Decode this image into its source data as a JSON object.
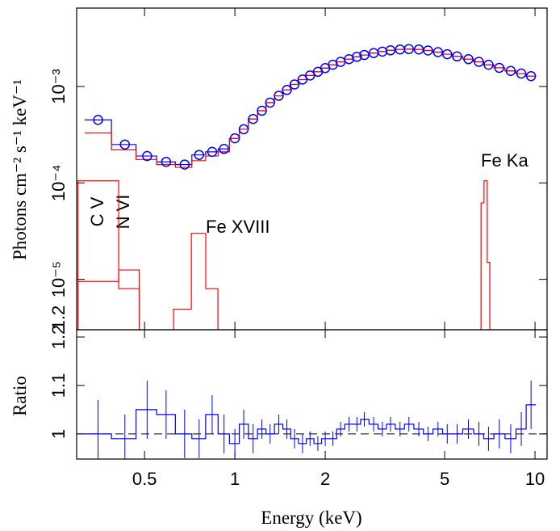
{
  "chart_data": [
    {
      "type": "line",
      "ylabel": "Photons cm⁻² s⁻¹ keV⁻¹",
      "xlim": [
        0.297,
        10.97
      ],
      "xscale": "log",
      "ylim": [
        3e-06,
        0.0065
      ],
      "yscale": "log",
      "yticks": [
        {
          "value": 0.001,
          "label": "10⁻³"
        },
        {
          "value": 0.0001,
          "label": "10⁻⁴"
        },
        {
          "value": 1e-05,
          "label": "10⁻⁵"
        }
      ],
      "stray_label": "1.2",
      "x": [
        0.35,
        0.43,
        0.51,
        0.59,
        0.68,
        0.76,
        0.84,
        0.92,
        1.0,
        1.07,
        1.15,
        1.23,
        1.31,
        1.4,
        1.49,
        1.58,
        1.68,
        1.78,
        1.89,
        2.0,
        2.12,
        2.25,
        2.4,
        2.55,
        2.7,
        2.9,
        3.1,
        3.3,
        3.55,
        3.8,
        4.1,
        4.4,
        4.75,
        5.1,
        5.5,
        6.0,
        6.5,
        7.0,
        7.6,
        8.3,
        9.0,
        9.7
      ],
      "series": [
        {
          "color": "#0000ff",
          "values": [
            0.00045,
            0.00025,
            0.00019,
            0.000165,
            0.000155,
            0.000195,
            0.00021,
            0.000225,
            0.00029,
            0.00036,
            0.00046,
            0.00056,
            0.00068,
            0.0008,
            0.00092,
            0.00105,
            0.00118,
            0.0013,
            0.00142,
            0.00155,
            0.00168,
            0.0018,
            0.00192,
            0.00203,
            0.00212,
            0.00222,
            0.0023,
            0.00237,
            0.00242,
            0.00244,
            0.00242,
            0.00236,
            0.00227,
            0.00216,
            0.00205,
            0.00192,
            0.0018,
            0.00168,
            0.00156,
            0.00145,
            0.00136,
            0.00128
          ]
        },
        {
          "color": "#ff0000",
          "values": [
            0.00033,
            0.00022,
            0.000175,
            0.000155,
            0.000145,
            0.00017,
            0.00019,
            0.00021,
            0.00029,
            0.00036,
            0.00046,
            0.00056,
            0.00068,
            0.0008,
            0.00092,
            0.00105,
            0.00118,
            0.0013,
            0.00142,
            0.00155,
            0.00168,
            0.0018,
            0.00192,
            0.00203,
            0.00212,
            0.00222,
            0.0023,
            0.00237,
            0.00242,
            0.00244,
            0.00242,
            0.00236,
            0.00227,
            0.00216,
            0.00205,
            0.00192,
            0.0018,
            0.00168,
            0.00156,
            0.00145,
            0.00136,
            0.00128
          ]
        }
      ],
      "components": [
        {
          "color": "#ff0000",
          "edges": [
            0.3,
            0.41,
            0.48
          ],
          "values": [
            0.000105,
            8e-06
          ]
        },
        {
          "color": "#ff0000",
          "edges": [
            0.3,
            0.41,
            0.48
          ],
          "values": [
            9.5e-06,
            1.25e-05
          ]
        },
        {
          "color": "#ff0000",
          "edges": [
            0.625,
            0.716,
            0.8,
            0.878
          ],
          "values": [
            4.9e-06,
            3e-05,
            8e-06
          ]
        },
        {
          "color": "#ff0000",
          "edges": [
            6.61,
            6.76,
            6.93,
            7.07
          ],
          "values": [
            6.2e-05,
            0.000105,
            1.5e-05
          ]
        }
      ],
      "annotations": [
        "C V",
        "N VI",
        "Fe XVIII",
        "Fe Ka"
      ]
    },
    {
      "type": "line",
      "xlabel": "Energy (keV)",
      "ylabel": "Ratio",
      "xlim": [
        0.297,
        10.97
      ],
      "xscale": "log",
      "xticks": [
        0.5,
        1,
        2,
        5,
        10
      ],
      "ylim": [
        0.948,
        1.215
      ],
      "yticks": [
        1,
        1.1,
        1.2
      ],
      "reference": 1,
      "x": [
        0.35,
        0.43,
        0.51,
        0.59,
        0.68,
        0.76,
        0.84,
        0.92,
        1.0,
        1.07,
        1.15,
        1.23,
        1.31,
        1.4,
        1.49,
        1.58,
        1.68,
        1.78,
        1.89,
        2.0,
        2.12,
        2.25,
        2.4,
        2.55,
        2.7,
        2.9,
        3.1,
        3.3,
        3.55,
        3.8,
        4.1,
        4.4,
        4.75,
        5.1,
        5.5,
        6.0,
        6.5,
        7.0,
        7.6,
        8.3,
        9.0,
        9.7
      ],
      "series": [
        {
          "color": "#0000ff",
          "values": [
            1.0,
            0.99,
            1.05,
            1.04,
            1.0,
            0.99,
            1.04,
            1.0,
            0.98,
            1.02,
            0.99,
            1.01,
            1.0,
            1.02,
            1.01,
            0.99,
            0.98,
            0.99,
            0.98,
            0.99,
            0.99,
            1.01,
            1.02,
            1.02,
            1.03,
            1.02,
            1.01,
            1.02,
            1.01,
            1.02,
            1.01,
            1.0,
            1.01,
            1.0,
            1.0,
            1.01,
            1.0,
            0.99,
            1.0,
            0.99,
            1.01,
            1.06
          ],
          "errors": [
            0.07,
            0.05,
            0.06,
            0.05,
            0.05,
            0.04,
            0.04,
            0.04,
            0.03,
            0.03,
            0.03,
            0.02,
            0.02,
            0.02,
            0.02,
            0.02,
            0.02,
            0.015,
            0.015,
            0.015,
            0.015,
            0.015,
            0.015,
            0.015,
            0.015,
            0.015,
            0.015,
            0.015,
            0.015,
            0.015,
            0.015,
            0.015,
            0.015,
            0.02,
            0.02,
            0.02,
            0.025,
            0.025,
            0.03,
            0.03,
            0.035,
            0.05
          ]
        }
      ]
    }
  ]
}
